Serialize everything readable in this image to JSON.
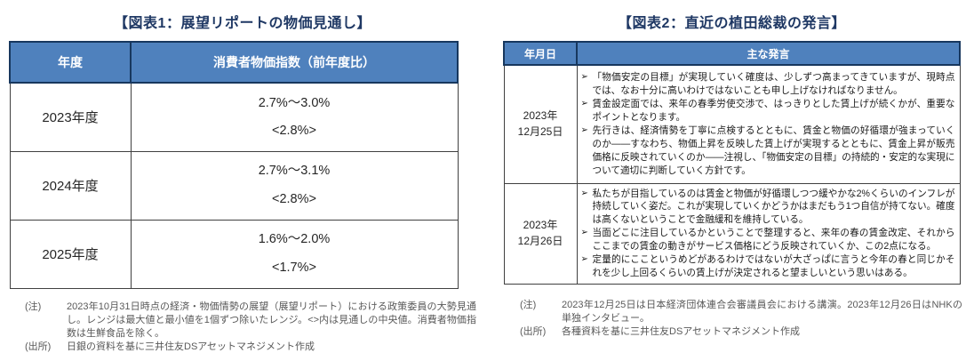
{
  "figure1": {
    "title": "【図表1：展望リポートの物価見通し】",
    "table": {
      "header_year": "年度",
      "header_cpi": "消費者物価指数（前年度比）",
      "rows": [
        {
          "year": "2023年度",
          "range": "2.7%～3.0%",
          "median": "<2.8%>"
        },
        {
          "year": "2024年度",
          "range": "2.7%～3.1%",
          "median": "<2.8%>"
        },
        {
          "year": "2025年度",
          "range": "1.6%～2.0%",
          "median": "<1.7%>"
        }
      ]
    },
    "notes": [
      {
        "label": "(注)",
        "text": "2023年10月31日時点の経済・物価情勢の展望（展望リポート）における政策委員の大勢見通し。レンジは最大値と最小値を1個ずつ除いたレンジ。<>内は見通しの中央値。消費者物価指数は生鮮食品を除く。"
      },
      {
        "label": "(出所)",
        "text": "日銀の資料を基に三井住友DSアセットマネジメント作成"
      }
    ]
  },
  "figure2": {
    "title": "【図表2：直近の植田総裁の発言】",
    "table": {
      "header_date": "年月日",
      "header_speech": "主な発言",
      "rows": [
        {
          "date_line1": "2023年",
          "date_line2": "12月25日",
          "bullets": [
            "「物価安定の目標」が実現していく確度は、少しずつ高まってきていますが、現時点では、なお十分に高いわけではないことも申し上げなければなりません。",
            "賃金設定面では、来年の春季労使交渉で、はっきりとした賃上げが続くかが、重要なポイントとなります。",
            "先行きは、経済情勢を丁寧に点検するとともに、賃金と物価の好循環が強まっていくのか――すなわち、物価上昇を反映した賃上げが実現するとともに、賃金上昇が販売価格に反映されていくのか――注視し、「物価安定の目標」の持続的・安定的な実現について適切に判断していく方針です。"
          ]
        },
        {
          "date_line1": "2023年",
          "date_line2": "12月26日",
          "bullets": [
            "私たちが目指しているのは賃金と物価が好循環しつつ緩やかな2%くらいのインフレが持続していく姿だ。これが実現していくかどうかはまだもう1つ自信が持てない。確度は高くないということで金融緩和を維持している。",
            "当面どこに注目しているかということで整理すると、来年の春の賃金改定、それからここまでの賃金の動きがサービス価格にどう反映されていくか、この2点になる。",
            "定量的にここというめどがあるわけではないが大ざっぱに言うと今年の春と同じかそれを少し上回るくらいの賃上げが決定されると望ましいという思いはある。"
          ]
        }
      ]
    },
    "notes": [
      {
        "label": "(注)",
        "text": "2023年12月25日は日本経済団体連合会審議員会における講演。2023年12月26日はNHKの単独インタビュー。"
      },
      {
        "label": "(出所)",
        "text": "各種資料を基に三井住友DSアセットマネジメント作成"
      }
    ]
  },
  "icons": {
    "bullet": "➢"
  },
  "colors": {
    "header_fill": "#4F81BD",
    "header_border": "#17375E",
    "title_text": "#1F3864",
    "body_border": "#404040",
    "note_text": "#595959"
  }
}
